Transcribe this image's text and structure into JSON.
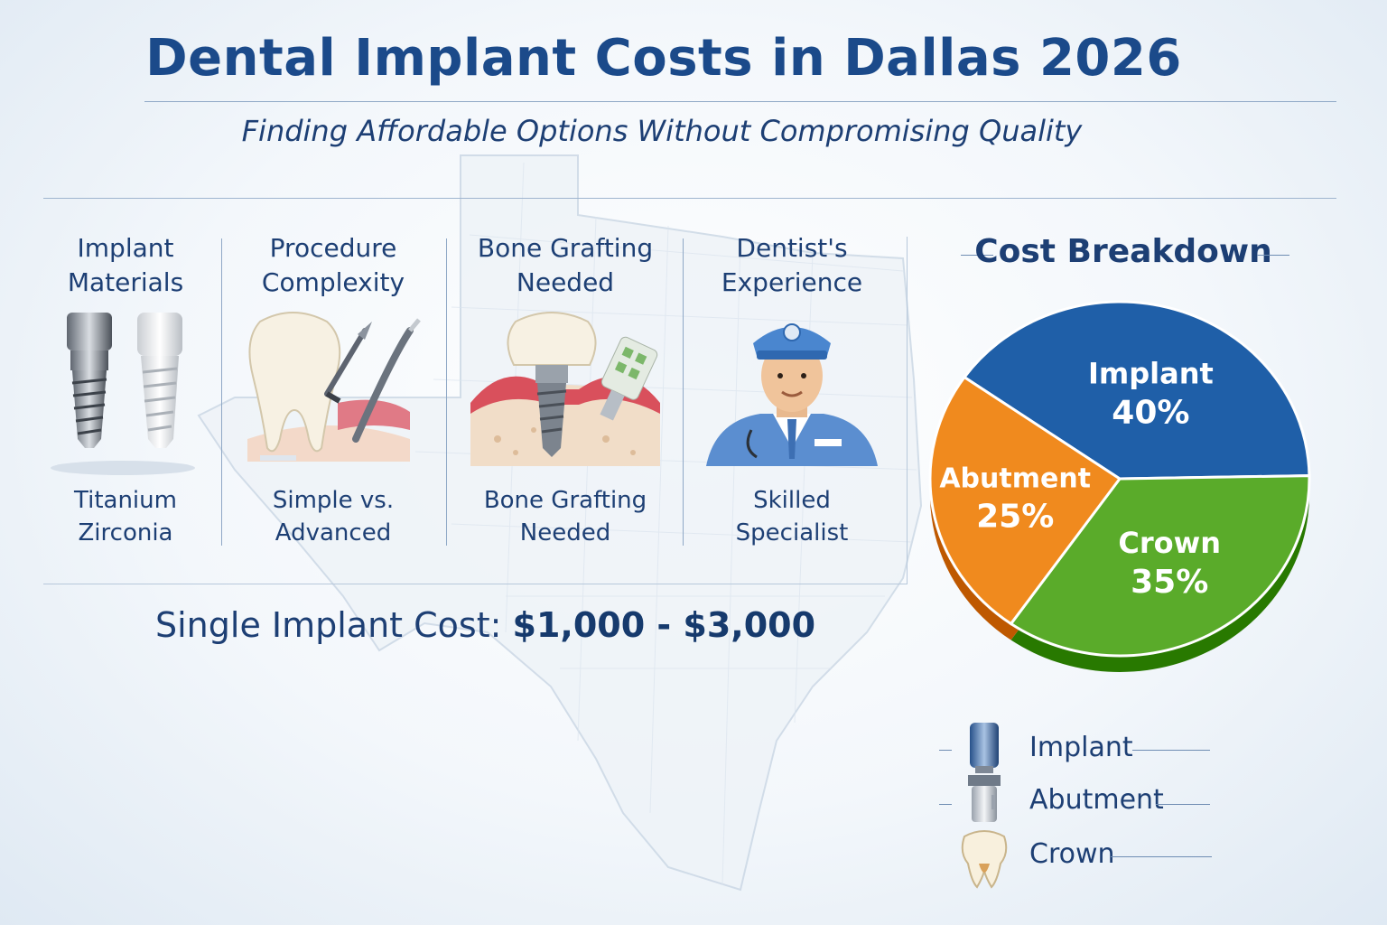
{
  "header": {
    "title": "Dental Implant Costs in Dallas 2026",
    "subtitle": "Finding Affordable Options Without Compromising Quality"
  },
  "factors": [
    {
      "title_line1": "Implant",
      "title_line2": "Materials",
      "caption_line1": "Titanium",
      "caption_line2": "Zirconia",
      "icon": "implant-screws-icon"
    },
    {
      "title_line1": "Procedure",
      "title_line2": "Complexity",
      "caption_line1": "Simple vs.",
      "caption_line2": "Advanced",
      "icon": "tooth-tools-icon"
    },
    {
      "title_line1": "Bone Grafting",
      "title_line2": "Needed",
      "caption_line1": "Bone Grafting",
      "caption_line2": "Needed",
      "icon": "bone-graft-icon"
    },
    {
      "title_line1": "Dentist's",
      "title_line2": "Experience",
      "caption_line1": "Skilled",
      "caption_line2": "Specialist",
      "icon": "dentist-avatar-icon"
    }
  ],
  "price": {
    "label": "Single Implant Cost:",
    "range": "$1,000 - $3,000"
  },
  "cost_breakdown": {
    "title": "Cost Breakdown"
  },
  "chart_data": {
    "type": "pie",
    "title": "Cost Breakdown",
    "slices": [
      {
        "label": "Implant",
        "value": 40,
        "display": "40%",
        "color": "#1f5fa8"
      },
      {
        "label": "Crown",
        "value": 35,
        "display": "35%",
        "color": "#5aab2a"
      },
      {
        "label": "Abutment",
        "value": 25,
        "display": "25%",
        "color": "#f08a1e"
      }
    ]
  },
  "legend": [
    {
      "label": "Implant",
      "icon": "implant-post-icon"
    },
    {
      "label": "Abutment",
      "icon": "abutment-icon"
    },
    {
      "label": "Crown",
      "icon": "crown-tooth-icon"
    }
  ]
}
